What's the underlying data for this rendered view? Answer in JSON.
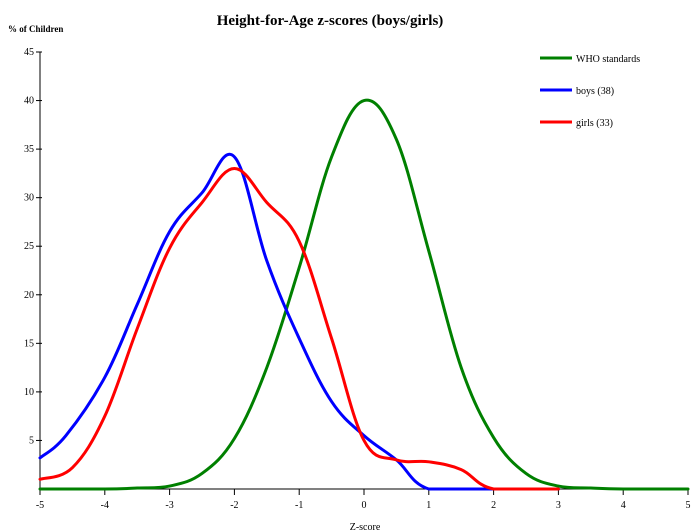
{
  "chart_data": {
    "type": "line",
    "title": "Height-for-Age z-scores (boys/girls)",
    "ylabel": "% of Children",
    "xlabel": "Z-score",
    "xlim": [
      -5,
      5
    ],
    "ylim": [
      0,
      45
    ],
    "x_ticks": [
      -5,
      -4,
      -3,
      -2,
      -1,
      0,
      1,
      2,
      3,
      4,
      5
    ],
    "y_ticks": [
      5,
      10,
      15,
      20,
      25,
      30,
      35,
      40,
      45
    ],
    "x_tick_labels": [
      "-5",
      "-4",
      "-3",
      "-2",
      "-1",
      "0",
      "1",
      "2",
      "3",
      "4",
      "5"
    ],
    "y_tick_labels": [
      "5",
      "10",
      "15",
      "20",
      "25",
      "30",
      "35",
      "40",
      "45"
    ],
    "grid": false,
    "legend_position": "top-right",
    "series": [
      {
        "name": "WHO standards",
        "color": "#008000",
        "x": [
          -5,
          -4,
          -3.5,
          -3,
          -2.5,
          -2,
          -1.5,
          -1,
          -0.5,
          0,
          0.5,
          1,
          1.5,
          2,
          2.5,
          3,
          3.5,
          4,
          5
        ],
        "y": [
          0,
          0,
          0.1,
          0.3,
          1.6,
          5.2,
          12.5,
          22.8,
          34.2,
          40,
          36.0,
          24.5,
          12.5,
          5.3,
          1.6,
          0.3,
          0.1,
          0,
          0
        ]
      },
      {
        "name": "boys (38)",
        "color": "#0000ff",
        "x": [
          -5,
          -4.6,
          -4,
          -3.5,
          -3,
          -2.5,
          -2,
          -1.5,
          -1,
          -0.5,
          0,
          0.5,
          1,
          2,
          3
        ],
        "y": [
          3.2,
          5.5,
          11.5,
          19.0,
          26.5,
          30.5,
          34.2,
          23.5,
          15.5,
          9.0,
          5.5,
          3.0,
          0,
          0,
          0
        ]
      },
      {
        "name": "girls (33)",
        "color": "#ff0000",
        "x": [
          -5,
          -4.5,
          -4,
          -3.5,
          -3,
          -2.5,
          -2,
          -1.5,
          -1,
          -0.5,
          0,
          0.5,
          1,
          1.5,
          2,
          3
        ],
        "y": [
          1.0,
          2.2,
          7.5,
          16.5,
          24.8,
          29.5,
          33.0,
          29.5,
          25.5,
          15.5,
          5.0,
          3.0,
          2.8,
          2.0,
          0,
          0
        ]
      }
    ]
  }
}
